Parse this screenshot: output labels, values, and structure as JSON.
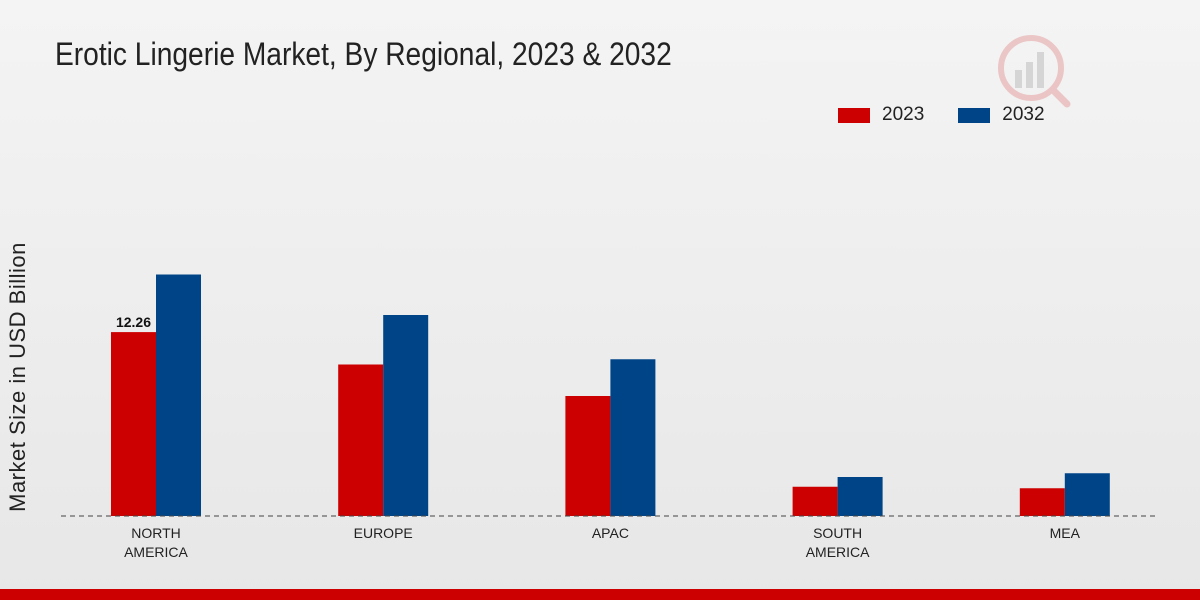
{
  "title": "Erotic Lingerie Market, By Regional, 2023 & 2032",
  "legend": [
    {
      "label": "2023",
      "color": "#cc0000"
    },
    {
      "label": "2032",
      "color": "#004488"
    }
  ],
  "chart_data": {
    "type": "bar",
    "title": "Erotic Lingerie Market, By Regional, 2023 & 2032",
    "xlabel": "",
    "ylabel": "Market Size in USD Billion",
    "categories": [
      "NORTH\nAMERICA",
      "EUROPE",
      "APAC",
      "SOUTH\nAMERICA",
      "MEA"
    ],
    "series": [
      {
        "name": "2023",
        "color": "#cc0000",
        "values": [
          12.26,
          10.1,
          8.0,
          1.95,
          1.85
        ]
      },
      {
        "name": "2032",
        "color": "#004488",
        "values": [
          16.1,
          13.4,
          10.45,
          2.6,
          2.85
        ]
      }
    ],
    "ylim": [
      0,
      25
    ],
    "data_labels": [
      {
        "series": 0,
        "index": 0,
        "text": "12.26"
      }
    ],
    "grid": false,
    "legend_position": "top-right"
  }
}
